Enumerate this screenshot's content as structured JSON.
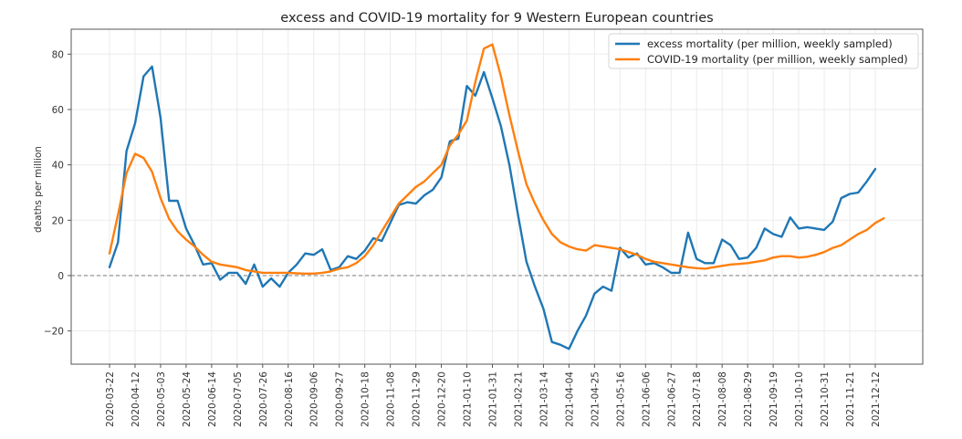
{
  "chart_data": {
    "type": "line",
    "title": "excess and COVID-19 mortality for 9 Western European countries",
    "xlabel": "",
    "ylabel": "deaths per million",
    "ylim": [
      -32,
      89
    ],
    "yticks": [
      -20,
      0,
      20,
      40,
      60,
      80
    ],
    "ytick_labels": [
      "−20",
      "0",
      "20",
      "40",
      "60",
      "80"
    ],
    "x_start": "2020-03-22",
    "x_step_days": 7,
    "xticks": [
      "2020-03-22",
      "2020-04-12",
      "2020-05-03",
      "2020-05-24",
      "2020-06-14",
      "2020-07-05",
      "2020-07-26",
      "2020-08-16",
      "2020-09-06",
      "2020-09-27",
      "2020-10-18",
      "2020-11-08",
      "2020-11-29",
      "2020-12-20",
      "2021-01-10",
      "2021-01-31",
      "2021-02-21",
      "2021-03-14",
      "2021-04-04",
      "2021-04-25",
      "2021-05-16",
      "2021-06-06",
      "2021-06-27",
      "2021-07-18",
      "2021-08-08",
      "2021-08-29",
      "2021-09-19",
      "2021-10-10",
      "2021-10-31",
      "2021-11-21",
      "2021-12-12"
    ],
    "xtick_week_interval": 3,
    "grid": true,
    "legend_position": "top-right",
    "reference_line": {
      "y": 0,
      "style": "dashed",
      "color": "#888888"
    },
    "series": [
      {
        "name": "excess mortality (per million, weekly sampled)",
        "color": "#1f77b4",
        "values": [
          3,
          12,
          45,
          55,
          72,
          75.5,
          57,
          27,
          27,
          17,
          11,
          4,
          4.5,
          -1.5,
          1,
          1,
          -3,
          4,
          -4,
          -1,
          -4,
          1,
          4,
          8,
          7.5,
          9.5,
          2,
          3,
          7,
          6,
          9,
          13.5,
          12.5,
          19,
          25.5,
          26.5,
          26,
          29,
          31,
          35.5,
          48.5,
          49.5,
          68.5,
          65,
          73.5,
          64,
          54,
          40,
          22,
          5,
          -4,
          -12,
          -24,
          -25,
          -26.5,
          -20,
          -14.5,
          -6.5,
          -4,
          -5.5,
          10,
          6.5,
          8,
          4,
          4.5,
          3,
          1,
          1,
          15.5,
          6,
          4.5,
          4.5,
          13,
          11,
          6,
          6.5,
          10,
          17,
          15,
          14,
          21,
          17,
          17.5,
          17,
          16.5,
          19.5,
          28,
          29.5,
          30,
          34,
          38.5
        ]
      },
      {
        "name": "COVID-19 mortality (per million, weekly sampled)",
        "color": "#ff7f0e",
        "values": [
          8,
          22,
          37,
          44,
          42.5,
          37.5,
          28,
          20.5,
          16,
          13,
          10.5,
          7.5,
          5,
          4,
          3.5,
          3,
          2,
          1.5,
          1,
          1,
          1,
          1,
          0.8,
          0.7,
          0.7,
          1,
          1.5,
          2.5,
          3,
          4.5,
          7,
          11,
          16,
          21,
          26,
          29,
          32,
          34,
          37,
          40,
          47,
          51,
          56,
          70,
          82,
          83.5,
          72,
          58,
          45,
          33,
          26,
          20,
          15,
          12,
          10.5,
          9.5,
          9,
          11,
          10.5,
          10,
          9.5,
          8.5,
          7.5,
          6,
          5,
          4.5,
          4,
          3.5,
          3,
          2.7,
          2.5,
          3,
          3.5,
          4,
          4.2,
          4.5,
          5,
          5.5,
          6.5,
          7,
          7,
          6.5,
          6.8,
          7.5,
          8.5,
          10,
          11,
          13,
          15,
          16.5,
          19,
          20.7
        ]
      }
    ]
  }
}
